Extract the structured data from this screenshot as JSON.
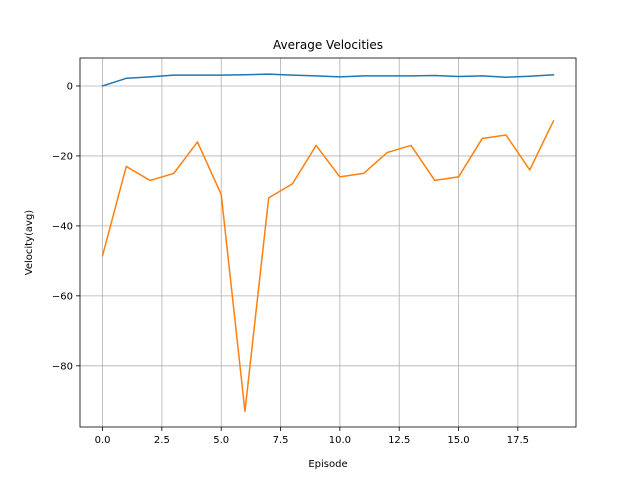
{
  "chart_data": {
    "type": "line",
    "title": "Average Velocities",
    "xlabel": "Episode",
    "ylabel": "Velocity(avg)",
    "xlim": [
      -0.95,
      19.95
    ],
    "ylim": [
      -97.5,
      8.0
    ],
    "grid": true,
    "x": [
      0,
      1,
      2,
      3,
      4,
      5,
      6,
      7,
      8,
      9,
      10,
      11,
      12,
      13,
      14,
      15,
      16,
      17,
      18,
      19
    ],
    "x_ticks": [
      0.0,
      2.5,
      5.0,
      7.5,
      10.0,
      12.5,
      15.0,
      17.5
    ],
    "x_tick_labels": [
      "0.0",
      "2.5",
      "5.0",
      "7.5",
      "10.0",
      "12.5",
      "15.0",
      "17.5"
    ],
    "y_ticks": [
      0,
      -20,
      -40,
      -60,
      -80
    ],
    "y_tick_labels": [
      "0",
      "−20",
      "−40",
      "−60",
      "−80"
    ],
    "series": [
      {
        "color": "#1f77b4",
        "values": [
          0.0,
          2.2,
          2.6,
          3.1,
          3.1,
          3.1,
          3.2,
          3.4,
          3.1,
          2.9,
          2.6,
          2.9,
          2.9,
          2.9,
          3.0,
          2.7,
          2.9,
          2.5,
          2.8,
          3.2
        ]
      },
      {
        "color": "#ff7f0e",
        "values": [
          -48.5,
          -23.0,
          -27.0,
          -25.0,
          -16.0,
          -31.0,
          -93.0,
          -32.0,
          -28.0,
          -17.0,
          -26.0,
          -25.0,
          -19.0,
          -17.0,
          -27.0,
          -26.0,
          -15.0,
          -14.0,
          -24.0,
          -10.0
        ]
      }
    ]
  }
}
